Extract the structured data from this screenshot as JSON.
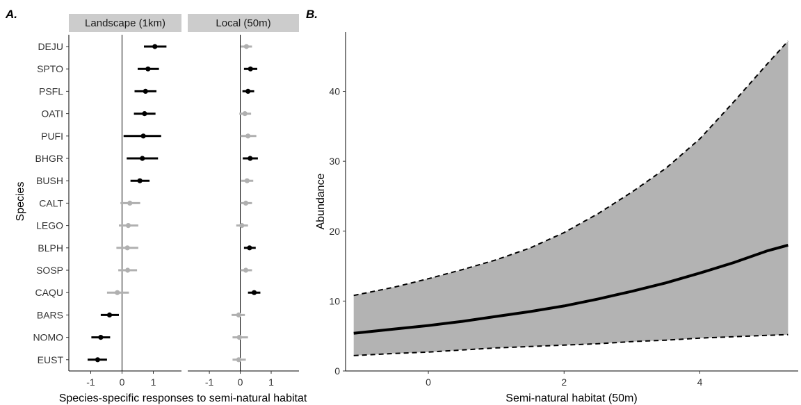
{
  "chart_data": [
    {
      "type": "scatter",
      "panel_label": "A.",
      "ylabel": "Species",
      "xlabel": "Species-specific responses to semi-natural habitat",
      "species": [
        "DEJU",
        "SPTO",
        "PSFL",
        "OATI",
        "PUFI",
        "BHGR",
        "BUSH",
        "CALT",
        "LEGO",
        "BLPH",
        "SOSP",
        "CAQU",
        "BARS",
        "NOMO",
        "EUST"
      ],
      "xlim": [
        -1.7,
        1.9
      ],
      "xticks": [
        -1,
        0,
        1
      ],
      "xtick_labels": [
        "-1",
        "0",
        "1"
      ],
      "ref_line_x": 0,
      "colors": {
        "significant": "#000000",
        "not_significant": "#b0b0b0"
      },
      "facets": [
        {
          "strip_label": "Landscape (1km)",
          "estimates": [
            {
              "species": "DEJU",
              "est": 1.05,
              "lo": 0.7,
              "hi": 1.42,
              "sig": true
            },
            {
              "species": "SPTO",
              "est": 0.83,
              "lo": 0.5,
              "hi": 1.18,
              "sig": true
            },
            {
              "species": "PSFL",
              "est": 0.75,
              "lo": 0.4,
              "hi": 1.1,
              "sig": true
            },
            {
              "species": "OATI",
              "est": 0.72,
              "lo": 0.38,
              "hi": 1.07,
              "sig": true
            },
            {
              "species": "PUFI",
              "est": 0.68,
              "lo": 0.05,
              "hi": 1.25,
              "sig": true
            },
            {
              "species": "BHGR",
              "est": 0.65,
              "lo": 0.15,
              "hi": 1.15,
              "sig": true
            },
            {
              "species": "BUSH",
              "est": 0.57,
              "lo": 0.27,
              "hi": 0.88,
              "sig": true
            },
            {
              "species": "CALT",
              "est": 0.25,
              "lo": -0.05,
              "hi": 0.58,
              "sig": false
            },
            {
              "species": "LEGO",
              "est": 0.2,
              "lo": -0.1,
              "hi": 0.52,
              "sig": false
            },
            {
              "species": "BLPH",
              "est": 0.17,
              "lo": -0.18,
              "hi": 0.52,
              "sig": false
            },
            {
              "species": "SOSP",
              "est": 0.18,
              "lo": -0.12,
              "hi": 0.48,
              "sig": false
            },
            {
              "species": "CAQU",
              "est": -0.15,
              "lo": -0.48,
              "hi": 0.22,
              "sig": false
            },
            {
              "species": "BARS",
              "est": -0.4,
              "lo": -0.68,
              "hi": -0.1,
              "sig": true
            },
            {
              "species": "NOMO",
              "est": -0.68,
              "lo": -0.98,
              "hi": -0.38,
              "sig": true
            },
            {
              "species": "EUST",
              "est": -0.78,
              "lo": -1.1,
              "hi": -0.48,
              "sig": true
            }
          ]
        },
        {
          "strip_label": "Local (50m)",
          "estimates": [
            {
              "species": "DEJU",
              "est": 0.2,
              "lo": 0.02,
              "hi": 0.38,
              "sig": false
            },
            {
              "species": "SPTO",
              "est": 0.33,
              "lo": 0.12,
              "hi": 0.55,
              "sig": true
            },
            {
              "species": "PSFL",
              "est": 0.25,
              "lo": 0.07,
              "hi": 0.45,
              "sig": true
            },
            {
              "species": "OATI",
              "est": 0.15,
              "lo": -0.03,
              "hi": 0.35,
              "sig": false
            },
            {
              "species": "PUFI",
              "est": 0.25,
              "lo": 0.0,
              "hi": 0.52,
              "sig": false
            },
            {
              "species": "BHGR",
              "est": 0.32,
              "lo": 0.08,
              "hi": 0.57,
              "sig": true
            },
            {
              "species": "BUSH",
              "est": 0.22,
              "lo": 0.03,
              "hi": 0.42,
              "sig": false
            },
            {
              "species": "CALT",
              "est": 0.18,
              "lo": 0.0,
              "hi": 0.38,
              "sig": false
            },
            {
              "species": "LEGO",
              "est": 0.05,
              "lo": -0.13,
              "hi": 0.25,
              "sig": false
            },
            {
              "species": "BLPH",
              "est": 0.3,
              "lo": 0.12,
              "hi": 0.5,
              "sig": true
            },
            {
              "species": "SOSP",
              "est": 0.18,
              "lo": 0.0,
              "hi": 0.38,
              "sig": false
            },
            {
              "species": "CAQU",
              "est": 0.45,
              "lo": 0.25,
              "hi": 0.65,
              "sig": true
            },
            {
              "species": "BARS",
              "est": -0.05,
              "lo": -0.28,
              "hi": 0.15,
              "sig": false
            },
            {
              "species": "NOMO",
              "est": -0.03,
              "lo": -0.25,
              "hi": 0.25,
              "sig": false
            },
            {
              "species": "EUST",
              "est": -0.05,
              "lo": -0.25,
              "hi": 0.18,
              "sig": false
            }
          ]
        }
      ]
    },
    {
      "type": "line",
      "panel_label": "B.",
      "xlabel": "Semi-natural habitat (50m)",
      "ylabel": "Abundance",
      "xlim": [
        -1.22,
        5.45
      ],
      "ylim": [
        0,
        48.5
      ],
      "xticks": [
        0,
        2,
        4
      ],
      "xtick_labels": [
        "0",
        "2",
        "4"
      ],
      "yticks": [
        0,
        10,
        20,
        30,
        40
      ],
      "ytick_labels": [
        "0",
        "10",
        "20",
        "30",
        "40"
      ],
      "ribbon_color": "#b3b3b3",
      "x": [
        -1.1,
        -0.5,
        0.0,
        0.5,
        1.0,
        1.5,
        2.0,
        2.5,
        3.0,
        3.5,
        4.0,
        4.5,
        5.0,
        5.3
      ],
      "series": [
        {
          "style": "solid",
          "values": [
            5.4,
            6.0,
            6.5,
            7.1,
            7.8,
            8.5,
            9.3,
            10.3,
            11.4,
            12.6,
            14.0,
            15.5,
            17.2,
            18.0
          ]
        },
        {
          "style": "dashed",
          "values": [
            10.8,
            12.0,
            13.2,
            14.5,
            15.9,
            17.6,
            19.8,
            22.5,
            25.6,
            29.0,
            33.2,
            38.5,
            44.0,
            47.2
          ]
        },
        {
          "style": "dashed",
          "values": [
            2.2,
            2.5,
            2.7,
            3.0,
            3.3,
            3.5,
            3.7,
            3.9,
            4.2,
            4.4,
            4.7,
            4.9,
            5.1,
            5.2
          ]
        }
      ]
    }
  ]
}
